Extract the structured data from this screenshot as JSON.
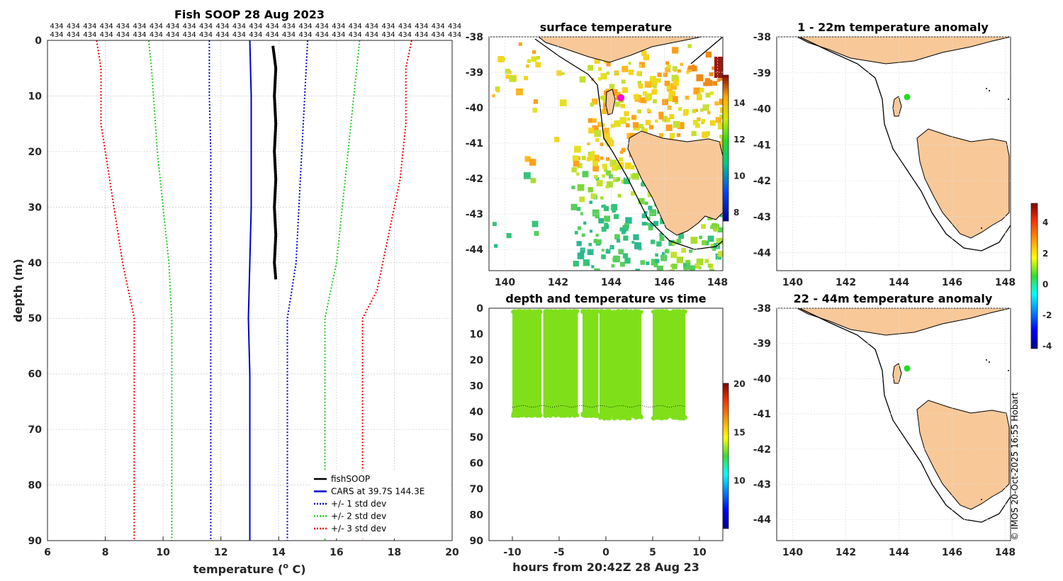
{
  "figure": {
    "credit": "© IMOS 20-Oct-2025 16:55 Hobart"
  },
  "chart_data": [
    {
      "id": "profile",
      "type": "line",
      "title": "Fish SOOP 28 Aug 2023",
      "xlabel": "temperature (",
      "xlabel_sup": "o",
      "xlabel_suffix": " C)",
      "ylabel": "depth (m)",
      "xlim": [
        6,
        20
      ],
      "ylim": [
        0,
        90
      ],
      "xticks": [
        6,
        8,
        10,
        12,
        14,
        16,
        18,
        20
      ],
      "yticks": [
        0,
        10,
        20,
        30,
        40,
        50,
        60,
        70,
        80,
        90
      ],
      "top_labels_text": "434",
      "top_labels_count": 25,
      "series": [
        {
          "name": "fishSOOP",
          "color": "#000000",
          "style": "solid",
          "width": 4,
          "points": [
            [
              13.8,
              1
            ],
            [
              13.9,
              5
            ],
            [
              13.85,
              10
            ],
            [
              13.9,
              15
            ],
            [
              13.85,
              20
            ],
            [
              13.9,
              25
            ],
            [
              13.85,
              30
            ],
            [
              13.9,
              35
            ],
            [
              13.85,
              40
            ],
            [
              13.9,
              43
            ]
          ]
        },
        {
          "name": "CARS at 39.7S 144.3E",
          "color": "#0000cc",
          "style": "solid",
          "width": 2,
          "points": [
            [
              13.0,
              0
            ],
            [
              13.05,
              10
            ],
            [
              13.05,
              20
            ],
            [
              13.05,
              30
            ],
            [
              13.0,
              40
            ],
            [
              12.95,
              50
            ],
            [
              13.0,
              60
            ],
            [
              13.0,
              70
            ],
            [
              13.0,
              80
            ],
            [
              13.0,
              90
            ]
          ]
        },
        {
          "name": "+/- 1 std dev",
          "color": "#0000cc",
          "style": "dotted",
          "width": 2,
          "points_left": [
            [
              11.6,
              0
            ],
            [
              11.6,
              10
            ],
            [
              11.65,
              20
            ],
            [
              11.65,
              30
            ],
            [
              11.65,
              40
            ],
            [
              11.65,
              50
            ],
            [
              11.65,
              60
            ],
            [
              11.65,
              70
            ],
            [
              11.65,
              80
            ],
            [
              11.65,
              90
            ]
          ],
          "points_right": [
            [
              15.0,
              0
            ],
            [
              14.9,
              10
            ],
            [
              14.8,
              20
            ],
            [
              14.7,
              30
            ],
            [
              14.6,
              40
            ],
            [
              14.3,
              50
            ],
            [
              14.3,
              60
            ],
            [
              14.3,
              70
            ],
            [
              14.3,
              80
            ],
            [
              14.3,
              90
            ]
          ]
        },
        {
          "name": "+/- 2 std dev",
          "color": "#22cc22",
          "style": "dotted",
          "width": 2,
          "points_left": [
            [
              9.5,
              0
            ],
            [
              9.6,
              5
            ],
            [
              9.8,
              20
            ],
            [
              10.0,
              30
            ],
            [
              10.2,
              40
            ],
            [
              10.3,
              50
            ],
            [
              10.3,
              60
            ],
            [
              10.3,
              70
            ],
            [
              10.3,
              80
            ],
            [
              10.3,
              90
            ]
          ],
          "points_right": [
            [
              16.8,
              0
            ],
            [
              16.6,
              10
            ],
            [
              16.4,
              20
            ],
            [
              16.2,
              30
            ],
            [
              16.0,
              40
            ],
            [
              15.6,
              50
            ],
            [
              15.6,
              60
            ],
            [
              15.6,
              70
            ],
            [
              15.6,
              80
            ],
            [
              15.6,
              90
            ]
          ]
        },
        {
          "name": "+/- 3 std dev",
          "color": "#ee0000",
          "style": "dotted",
          "width": 2,
          "points_left": [
            [
              7.7,
              0
            ],
            [
              7.85,
              5
            ],
            [
              7.85,
              15
            ],
            [
              8.0,
              20
            ],
            [
              8.3,
              30
            ],
            [
              8.6,
              40
            ],
            [
              9.0,
              50
            ],
            [
              9.0,
              60
            ],
            [
              9.0,
              70
            ],
            [
              9.0,
              80
            ],
            [
              9.0,
              90
            ]
          ],
          "points_right": [
            [
              18.6,
              0
            ],
            [
              18.4,
              5
            ],
            [
              18.4,
              15
            ],
            [
              18.2,
              25
            ],
            [
              17.8,
              35
            ],
            [
              17.4,
              45
            ],
            [
              16.9,
              50
            ],
            [
              16.9,
              60
            ],
            [
              16.9,
              70
            ],
            [
              16.9,
              80
            ],
            [
              16.9,
              90
            ]
          ]
        }
      ]
    },
    {
      "id": "sst_map",
      "type": "heatmap",
      "title": "surface temperature",
      "xlim": [
        139.4,
        148.2
      ],
      "ylim": [
        -44.6,
        -38.0
      ],
      "xticks": [
        140,
        142,
        144,
        146,
        148
      ],
      "yticks": [
        -38,
        -39,
        -40,
        -41,
        -42,
        -43,
        -44
      ],
      "colorbar": {
        "min": 7.5,
        "max": 15.5,
        "ticks": [
          8,
          10,
          12,
          14
        ]
      },
      "vessel_position": [
        144.3,
        -39.7
      ]
    },
    {
      "id": "depth_time",
      "type": "scatter",
      "title": "depth and temperature vs time",
      "xlabel": "hours from 20:42Z 28 Aug 23",
      "xlim": [
        -12.5,
        12.5
      ],
      "ylim": [
        0,
        90
      ],
      "xticks": [
        -10,
        -5,
        0,
        5,
        10
      ],
      "yticks": [
        0,
        10,
        20,
        30,
        40,
        50,
        60,
        70,
        80,
        90
      ],
      "colorbar": {
        "min": 5,
        "max": 20,
        "ticks": [
          10,
          15,
          20
        ]
      },
      "point_color": "#7fe01a",
      "cast_blocks": [
        {
          "t_start": -10.0,
          "t_end": -6.9,
          "max_depth": 41
        },
        {
          "t_start": -6.7,
          "t_end": -3.0,
          "max_depth": 41
        },
        {
          "t_start": -2.5,
          "t_end": -0.8,
          "max_depth": 41
        },
        {
          "t_start": -0.7,
          "t_end": 3.8,
          "max_depth": 42
        },
        {
          "t_start": 5.0,
          "t_end": 8.5,
          "max_depth": 42
        }
      ],
      "bottom_trace_depth": 38
    },
    {
      "id": "anomaly_1_22",
      "type": "heatmap",
      "title": "1 - 22m temperature anomaly",
      "xlim": [
        139.4,
        148.2
      ],
      "ylim": [
        -44.5,
        -38.0
      ],
      "xticks": [
        140,
        142,
        144,
        146,
        148
      ],
      "yticks": [
        -38,
        -39,
        -40,
        -41,
        -42,
        -43,
        -44
      ],
      "point": [
        144.3,
        -39.75
      ],
      "point_color": "#22dd22"
    },
    {
      "id": "anomaly_22_44",
      "type": "heatmap",
      "title": "22 - 44m temperature anomaly",
      "xlim": [
        139.4,
        148.2
      ],
      "ylim": [
        -44.6,
        -38.0
      ],
      "xticks": [
        140,
        142,
        144,
        146,
        148
      ],
      "yticks": [
        -38,
        -39,
        -40,
        -41,
        -42,
        -43,
        -44
      ],
      "point": [
        144.3,
        -39.75
      ],
      "point_color": "#22dd22",
      "colorbar": {
        "min": -4.2,
        "max": 5.2,
        "ticks": [
          -4,
          -2,
          0,
          2,
          4
        ]
      }
    }
  ]
}
